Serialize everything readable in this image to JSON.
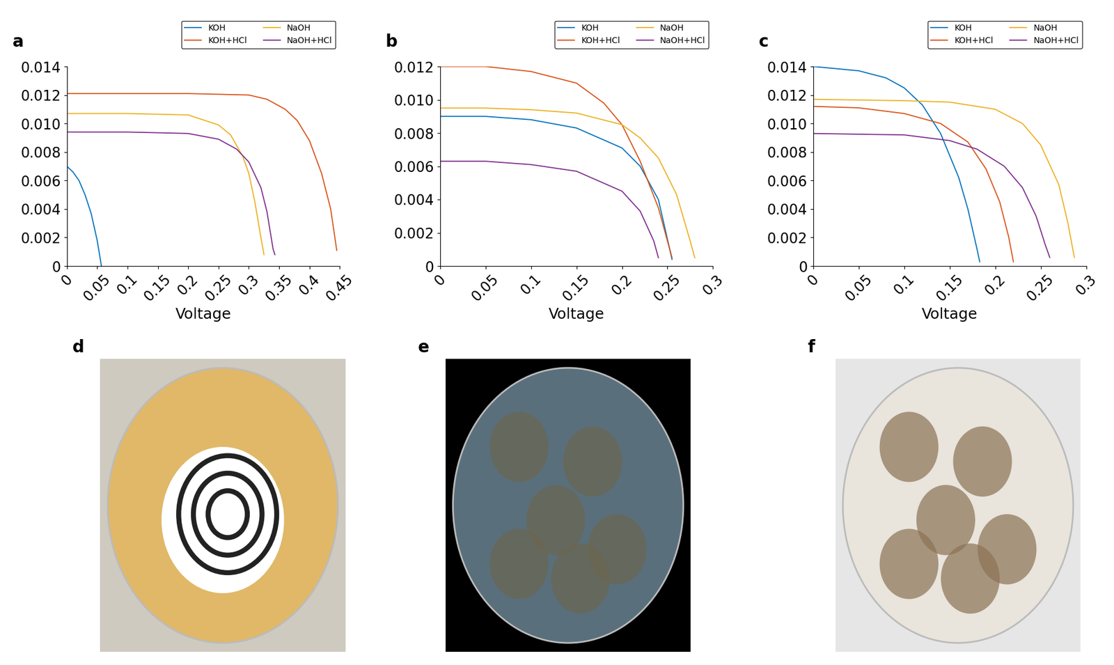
{
  "chart_data": [
    {
      "type": "line",
      "title": "a",
      "x_label": "Voltage",
      "legend": "upper right",
      "xlim": [
        0,
        0.45
      ],
      "xticks": [
        0,
        0.05,
        0.1,
        0.15,
        0.2,
        0.25,
        0.3,
        0.35,
        0.4,
        0.45
      ],
      "ylim": [
        0,
        0.014
      ],
      "yticks": [
        0,
        0.002,
        0.004,
        0.006,
        0.008,
        {
          "value": 0.01,
          "label": "0.010"
        },
        0.012,
        0.014
      ],
      "series": [
        {
          "name": "KOH",
          "color": "#0072BD",
          "x": [
            0,
            0.01,
            0.02,
            0.03,
            0.04,
            0.05,
            0.057
          ],
          "values": [
            0.007,
            0.0066,
            0.006,
            0.005,
            0.0037,
            0.0018,
            0.0
          ]
        },
        {
          "name": "KOH+HCl",
          "color": "#D95319",
          "x": [
            0,
            0.1,
            0.2,
            0.3,
            0.33,
            0.36,
            0.38,
            0.4,
            0.42,
            0.435,
            0.445
          ],
          "values": [
            0.0121,
            0.0121,
            0.0121,
            0.012,
            0.0117,
            0.011,
            0.0102,
            0.0088,
            0.0065,
            0.004,
            0.0011
          ]
        },
        {
          "name": "NaOH",
          "color": "#EDB120",
          "x": [
            0,
            0.1,
            0.2,
            0.25,
            0.27,
            0.29,
            0.3,
            0.31,
            0.32,
            0.325
          ],
          "values": [
            0.0107,
            0.0107,
            0.0106,
            0.0099,
            0.0092,
            0.0077,
            0.0065,
            0.0045,
            0.002,
            0.0008
          ]
        },
        {
          "name": "NaOH+HCl",
          "color": "#7E2F8E",
          "x": [
            0,
            0.1,
            0.2,
            0.25,
            0.28,
            0.3,
            0.32,
            0.33,
            0.34,
            0.343
          ],
          "values": [
            0.0094,
            0.0094,
            0.0093,
            0.0089,
            0.0082,
            0.0073,
            0.0055,
            0.0038,
            0.0012,
            0.0008
          ]
        }
      ]
    },
    {
      "type": "line",
      "title": "b",
      "x_label": "Voltage",
      "legend": "upper right",
      "xlim": [
        0,
        0.3
      ],
      "xticks": [
        0,
        0.05,
        0.1,
        0.15,
        0.2,
        0.25,
        0.3
      ],
      "ylim": [
        0,
        0.012
      ],
      "yticks": [
        0,
        0.002,
        0.004,
        0.006,
        0.008,
        {
          "value": 0.01,
          "label": "0.010"
        },
        0.012
      ],
      "series": [
        {
          "name": "KOH",
          "color": "#0072BD",
          "x": [
            0,
            0.05,
            0.1,
            0.15,
            0.2,
            0.22,
            0.24,
            0.255
          ],
          "values": [
            0.009,
            0.009,
            0.0088,
            0.0083,
            0.0071,
            0.006,
            0.004,
            0.0004
          ]
        },
        {
          "name": "KOH+HCl",
          "color": "#D95319",
          "x": [
            0,
            0.05,
            0.1,
            0.15,
            0.18,
            0.2,
            0.22,
            0.24,
            0.255
          ],
          "values": [
            0.012,
            0.012,
            0.0117,
            0.011,
            0.0098,
            0.0085,
            0.0063,
            0.0035,
            0.0005
          ]
        },
        {
          "name": "NaOH",
          "color": "#EDB120",
          "x": [
            0,
            0.05,
            0.1,
            0.15,
            0.2,
            0.22,
            0.24,
            0.26,
            0.275,
            0.28
          ],
          "values": [
            0.0095,
            0.0095,
            0.0094,
            0.0092,
            0.0085,
            0.0077,
            0.0065,
            0.0043,
            0.0015,
            0.0005
          ]
        },
        {
          "name": "NaOH+HCl",
          "color": "#7E2F8E",
          "x": [
            0,
            0.05,
            0.1,
            0.15,
            0.2,
            0.22,
            0.235,
            0.24
          ],
          "values": [
            0.0063,
            0.0063,
            0.0061,
            0.0057,
            0.0045,
            0.0033,
            0.0015,
            0.0005
          ]
        }
      ]
    },
    {
      "type": "line",
      "title": "c",
      "x_label": "Voltage",
      "legend": "upper right",
      "xlim": [
        0,
        0.3
      ],
      "xticks": [
        0,
        0.05,
        0.1,
        0.15,
        0.2,
        0.25,
        0.3
      ],
      "ylim": [
        0,
        0.014
      ],
      "yticks": [
        0,
        0.002,
        0.004,
        0.006,
        0.008,
        {
          "value": 0.01,
          "label": "0.010"
        },
        0.012,
        0.014
      ],
      "series": [
        {
          "name": "KOH",
          "color": "#0072BD",
          "x": [
            0,
            0.05,
            0.08,
            0.1,
            0.12,
            0.14,
            0.16,
            0.17,
            0.18,
            0.183
          ],
          "values": [
            0.014,
            0.0137,
            0.0132,
            0.0125,
            0.0113,
            0.0093,
            0.0062,
            0.004,
            0.0012,
            0.0003
          ]
        },
        {
          "name": "KOH+HCl",
          "color": "#D95319",
          "x": [
            0,
            0.05,
            0.1,
            0.14,
            0.17,
            0.19,
            0.205,
            0.215,
            0.22
          ],
          "values": [
            0.0112,
            0.0111,
            0.0107,
            0.01,
            0.0087,
            0.0068,
            0.0045,
            0.002,
            0.0003
          ]
        },
        {
          "name": "NaOH",
          "color": "#EDB120",
          "x": [
            0,
            0.1,
            0.15,
            0.2,
            0.23,
            0.25,
            0.27,
            0.28,
            0.287
          ],
          "values": [
            0.0117,
            0.0116,
            0.0115,
            0.011,
            0.01,
            0.0085,
            0.0057,
            0.003,
            0.0006
          ]
        },
        {
          "name": "NaOH+HCl",
          "color": "#7E2F8E",
          "x": [
            0,
            0.1,
            0.15,
            0.18,
            0.21,
            0.23,
            0.245,
            0.255,
            0.26
          ],
          "values": [
            0.0093,
            0.0092,
            0.0088,
            0.0082,
            0.007,
            0.0055,
            0.0035,
            0.0015,
            0.0006
          ]
        }
      ]
    }
  ],
  "photos": [
    {
      "label": "d"
    },
    {
      "label": "e"
    },
    {
      "label": "f"
    }
  ]
}
